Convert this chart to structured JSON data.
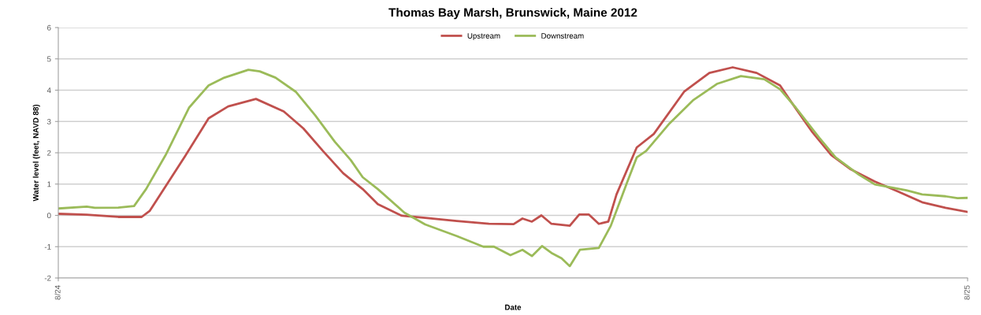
{
  "chart_data": {
    "type": "line",
    "title": "Thomas Bay Marsh, Brunswick, Maine 2012",
    "xlabel": "Date",
    "ylabel": "Water level (feet, NAVD 88)",
    "xlim": [
      "2012-08-24T00:00",
      "2012-08-25T00:00"
    ],
    "xticks": [
      {
        "value": "2012-08-24T00:00",
        "label": "8/24"
      },
      {
        "value": "2012-08-25T00:00",
        "label": "8/25"
      }
    ],
    "ylim": [
      -2,
      6
    ],
    "yticks": [
      -2,
      -1,
      0,
      1,
      2,
      3,
      4,
      5,
      6
    ],
    "grid": "y",
    "legend": "top",
    "marker": "none",
    "line_style": "solid",
    "series": [
      {
        "name": "Upstream",
        "color": "#c0504d",
        "x": [
          "2012-08-24T00:00",
          "2012-08-24T00:45",
          "2012-08-24T01:35",
          "2012-08-24T02:12",
          "2012-08-24T02:25",
          "2012-08-24T02:50",
          "2012-08-24T03:21",
          "2012-08-24T03:58",
          "2012-08-24T04:29",
          "2012-08-24T05:13",
          "2012-08-24T05:57",
          "2012-08-24T06:28",
          "2012-08-24T06:59",
          "2012-08-24T07:31",
          "2012-08-24T08:02",
          "2012-08-24T08:26",
          "2012-08-24T09:04",
          "2012-08-24T09:41",
          "2012-08-24T10:31",
          "2012-08-24T11:22",
          "2012-08-24T12:01",
          "2012-08-24T12:15",
          "2012-08-24T12:30",
          "2012-08-24T12:45",
          "2012-08-24T13:01",
          "2012-08-24T13:30",
          "2012-08-24T13:45",
          "2012-08-24T14:00",
          "2012-08-24T14:16",
          "2012-08-24T14:31",
          "2012-08-24T14:44",
          "2012-08-24T15:16",
          "2012-08-24T15:43",
          "2012-08-24T16:31",
          "2012-08-24T17:11",
          "2012-08-24T17:48",
          "2012-08-24T18:26",
          "2012-08-24T19:03",
          "2012-08-24T19:28",
          "2012-08-24T19:53",
          "2012-08-24T20:24",
          "2012-08-24T20:55",
          "2012-08-24T21:33",
          "2012-08-24T22:10",
          "2012-08-24T22:48",
          "2012-08-24T23:25",
          "2012-08-25T00:00"
        ],
        "values": [
          0.05,
          0.02,
          -0.05,
          -0.05,
          0.15,
          0.93,
          1.9,
          3.1,
          3.48,
          3.72,
          3.32,
          2.78,
          2.06,
          1.35,
          0.84,
          0.36,
          -0.01,
          -0.08,
          -0.18,
          -0.27,
          -0.28,
          -0.1,
          -0.2,
          0.0,
          -0.27,
          -0.33,
          0.03,
          0.03,
          -0.27,
          -0.2,
          0.67,
          2.17,
          2.6,
          3.95,
          4.55,
          4.73,
          4.55,
          4.15,
          3.41,
          2.69,
          1.93,
          1.47,
          1.08,
          0.76,
          0.42,
          0.24,
          0.11
        ]
      },
      {
        "name": "Downstream",
        "color": "#9bbb59",
        "x": [
          "2012-08-24T00:00",
          "2012-08-24T00:45",
          "2012-08-24T00:58",
          "2012-08-24T01:35",
          "2012-08-24T02:00",
          "2012-08-24T02:19",
          "2012-08-24T02:50",
          "2012-08-24T03:27",
          "2012-08-24T03:58",
          "2012-08-24T04:23",
          "2012-08-24T05:01",
          "2012-08-24T05:19",
          "2012-08-24T05:44",
          "2012-08-24T06:16",
          "2012-08-24T06:47",
          "2012-08-24T07:18",
          "2012-08-24T07:43",
          "2012-08-24T08:02",
          "2012-08-24T08:26",
          "2012-08-24T09:08",
          "2012-08-24T09:41",
          "2012-08-24T10:31",
          "2012-08-24T11:13",
          "2012-08-24T11:30",
          "2012-08-24T11:56",
          "2012-08-24T12:15",
          "2012-08-24T12:30",
          "2012-08-24T12:46",
          "2012-08-24T13:01",
          "2012-08-24T13:17",
          "2012-08-24T13:30",
          "2012-08-24T13:46",
          "2012-08-24T14:16",
          "2012-08-24T14:35",
          "2012-08-24T15:00",
          "2012-08-24T15:16",
          "2012-08-24T15:31",
          "2012-08-24T16:08",
          "2012-08-24T16:46",
          "2012-08-24T17:23",
          "2012-08-24T18:01",
          "2012-08-24T18:38",
          "2012-08-24T19:03",
          "2012-08-24T19:28",
          "2012-08-24T20:05",
          "2012-08-24T20:31",
          "2012-08-24T21:08",
          "2012-08-24T21:33",
          "2012-08-24T22:23",
          "2012-08-24T22:48",
          "2012-08-24T23:25",
          "2012-08-24T23:44",
          "2012-08-25T00:00"
        ],
        "values": [
          0.22,
          0.28,
          0.24,
          0.25,
          0.3,
          0.84,
          1.93,
          3.44,
          4.15,
          4.4,
          4.65,
          4.6,
          4.4,
          3.95,
          3.19,
          2.35,
          1.77,
          1.22,
          0.84,
          0.09,
          -0.29,
          -0.66,
          -1.0,
          -1.0,
          -1.27,
          -1.1,
          -1.3,
          -0.98,
          -1.2,
          -1.37,
          -1.62,
          -1.1,
          -1.04,
          -0.33,
          1.01,
          1.85,
          2.06,
          2.94,
          3.69,
          4.2,
          4.45,
          4.35,
          4.03,
          3.44,
          2.48,
          1.85,
          1.3,
          0.99,
          0.8,
          0.67,
          0.61,
          0.55,
          0.56
        ]
      }
    ]
  }
}
